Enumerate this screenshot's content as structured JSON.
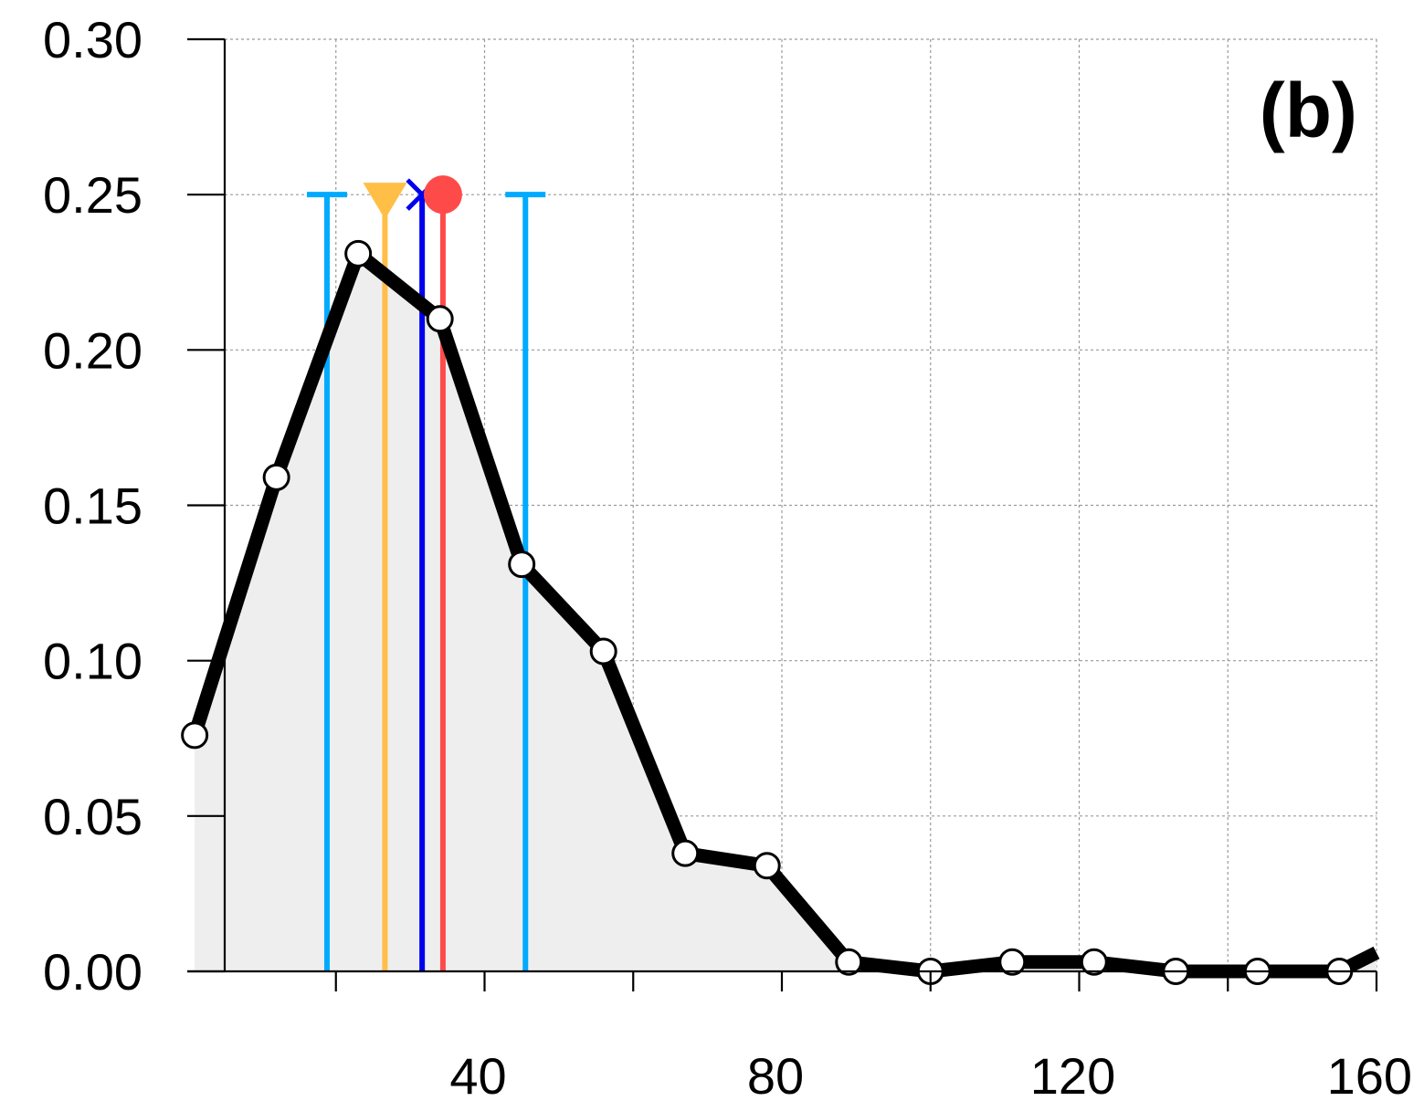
{
  "chart_data": {
    "type": "line",
    "panel_label": "(b)",
    "title": "",
    "xlabel": "",
    "ylabel": "",
    "xlim": [
      0,
      160
    ],
    "ylim": [
      0,
      0.3
    ],
    "x_ticks": [
      20,
      40,
      60,
      80,
      100,
      120,
      140,
      160
    ],
    "x_tick_labels": [
      "",
      "40",
      "",
      "80",
      "",
      "120",
      "",
      "160"
    ],
    "y_ticks": [
      0,
      0.05,
      0.1,
      0.15,
      0.2,
      0.25,
      0.3
    ],
    "y_tick_labels": [
      "0.00",
      "0.05",
      "0.10",
      "0.15",
      "0.20",
      "0.25",
      "0.30"
    ],
    "grid": true,
    "series": [
      {
        "x": [
          1,
          12,
          23,
          34,
          45,
          56,
          67,
          78,
          89,
          100,
          111,
          122,
          133,
          144,
          155,
          160
        ],
        "values": [
          0.076,
          0.159,
          0.231,
          0.21,
          0.131,
          0.103,
          0.038,
          0.034,
          0.003,
          0.0,
          0.003,
          0.003,
          0.0,
          0.0,
          0.0,
          0.006
        ],
        "markers": [
          true,
          true,
          true,
          true,
          true,
          true,
          true,
          true,
          true,
          true,
          true,
          true,
          true,
          true,
          true,
          false
        ],
        "line_color": "#000000",
        "fill_color": "#eeeeee"
      }
    ],
    "reference_lines": [
      {
        "x": 18.8,
        "top": 0.25,
        "color": "#00aaff",
        "marker": "cap"
      },
      {
        "x": 26.6,
        "top": 0.25,
        "color": "#ffbf47",
        "marker": "triangle-down"
      },
      {
        "x": 31.6,
        "top": 0.25,
        "color": "#0000ee",
        "marker": "x"
      },
      {
        "x": 34.4,
        "top": 0.25,
        "color": "#ff4a4a",
        "marker": "circle"
      },
      {
        "x": 45.5,
        "top": 0.25,
        "color": "#00aaff",
        "marker": "cap"
      }
    ]
  }
}
